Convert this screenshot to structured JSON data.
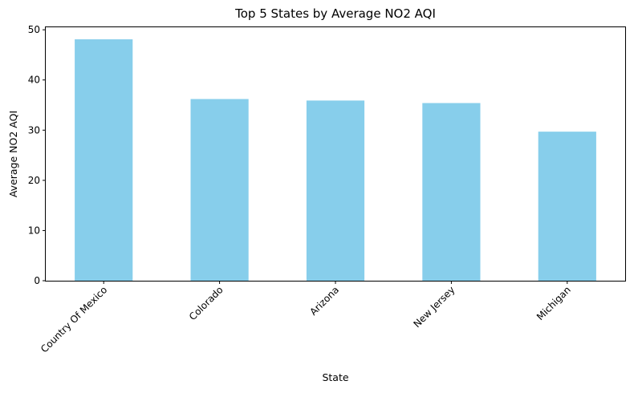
{
  "chart_data": {
    "type": "bar",
    "title": "Top 5 States by Average NO2 AQI",
    "xlabel": "State",
    "ylabel": "Average NO2 AQI",
    "categories": [
      "Country Of Mexico",
      "Colorado",
      "Arizona",
      "New Jersey",
      "Michigan"
    ],
    "values": [
      48.1,
      36.2,
      35.9,
      35.4,
      29.7
    ],
    "ylim": [
      0,
      50.5
    ],
    "yticks": [
      0,
      10,
      20,
      30,
      40,
      50
    ],
    "grid": false,
    "legend": "none",
    "bar_color": "#87ceeb"
  }
}
